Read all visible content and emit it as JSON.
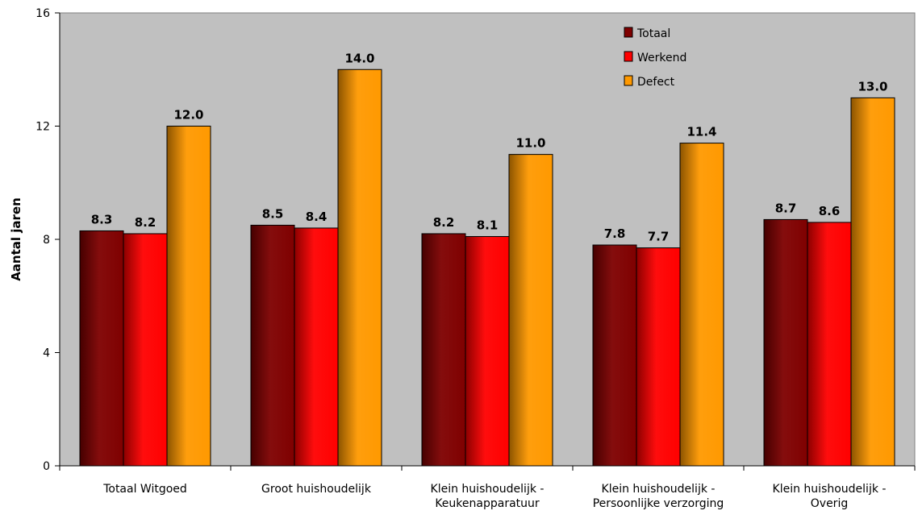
{
  "chart_data": {
    "type": "bar",
    "title": "",
    "xlabel": "",
    "ylabel": "Aantal jaren",
    "ylim": [
      0,
      16
    ],
    "yticks": [
      0,
      4,
      8,
      12,
      16
    ],
    "grid": false,
    "legend_position": "top-right",
    "plot_background": "#c0c0c0",
    "categories": [
      [
        "Totaal Witgoed"
      ],
      [
        "Groot huishoudelijk"
      ],
      [
        "Klein huishoudelijk -",
        "Keukenapparatuur"
      ],
      [
        "Klein huishoudelijk -",
        "Persoonlijke verzorging"
      ],
      [
        "Klein huishoudelijk -",
        "Overig"
      ]
    ],
    "series": [
      {
        "name": "Totaal",
        "color": "#7f0000",
        "values": [
          8.3,
          8.5,
          8.2,
          7.8,
          8.7
        ],
        "labels": [
          "8.3",
          "8.5",
          "8.2",
          "7.8",
          "8.7"
        ]
      },
      {
        "name": "Werkend",
        "color": "#ff0000",
        "values": [
          8.2,
          8.4,
          8.1,
          7.7,
          8.6
        ],
        "labels": [
          "8.2",
          "8.4",
          "8.1",
          "7.7",
          "8.6"
        ]
      },
      {
        "name": "Defect",
        "color": "#ff9900",
        "values": [
          12.0,
          14.0,
          11.0,
          11.4,
          13.0
        ],
        "labels": [
          "12.0",
          "14.0",
          "11.0",
          "11.4",
          "13.0"
        ]
      }
    ]
  }
}
